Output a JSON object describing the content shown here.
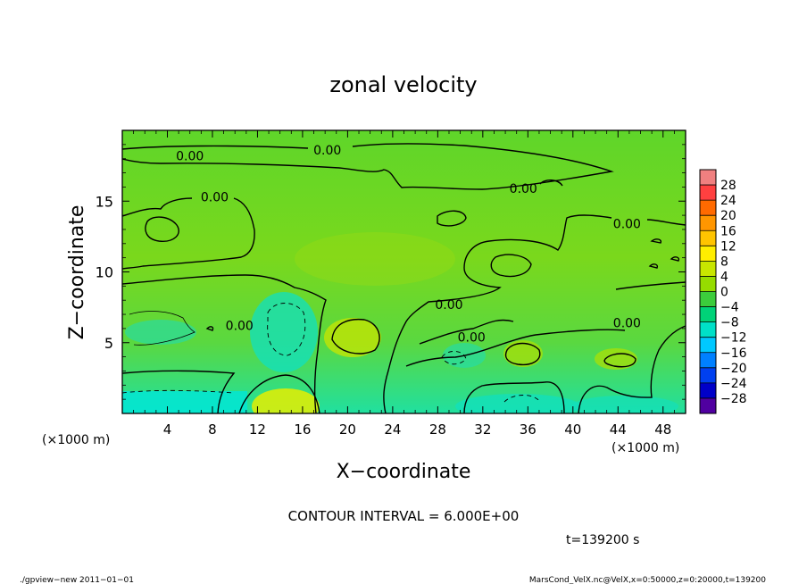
{
  "chart_data": {
    "type": "heatmap",
    "title": "zonal velocity",
    "xlabel": "X−coordinate",
    "ylabel": "Z−coordinate",
    "x_unit": "(×1000 m)",
    "z_unit": "(×1000 m)",
    "xlim": [
      0,
      50
    ],
    "ylim": [
      0,
      20
    ],
    "x_ticks": [
      4,
      8,
      12,
      16,
      20,
      24,
      28,
      32,
      36,
      40,
      44,
      48
    ],
    "y_ticks": [
      5,
      10,
      15
    ],
    "colorbar": {
      "labels": [
        "28",
        "24",
        "20",
        "16",
        "12",
        "8",
        "4",
        "0",
        "−4",
        "−8",
        "−12",
        "−16",
        "−20",
        "−24",
        "−28"
      ],
      "colors": [
        "#f08080",
        "#ff4040",
        "#ff6a00",
        "#ff9600",
        "#ffc400",
        "#ffee00",
        "#c8e600",
        "#96dc00",
        "#3ccc3c",
        "#00d278",
        "#00e0c8",
        "#00c8ff",
        "#0080ff",
        "#0040f0",
        "#0000c8",
        "#5000a0"
      ]
    },
    "contour_labels": [
      {
        "text": "0.00",
        "x": 6,
        "z": 18.2
      },
      {
        "text": "0.00",
        "x": 18.2,
        "z": 18.6
      },
      {
        "text": "0.00",
        "x": 8.2,
        "z": 15.3
      },
      {
        "text": "0.00",
        "x": 35.6,
        "z": 15.9
      },
      {
        "text": "0.00",
        "x": 44.8,
        "z": 13.4
      },
      {
        "text": "0.00",
        "x": 29,
        "z": 7.7
      },
      {
        "text": "0.00",
        "x": 31,
        "z": 5.4
      },
      {
        "text": "0.00",
        "x": 44.8,
        "z": 6.4
      },
      {
        "text": "0.00",
        "x": 10.4,
        "z": 6.2
      }
    ],
    "contour_interval_text": "CONTOUR INTERVAL = 6.000E+00",
    "time_text": "t=139200 s"
  },
  "footer": {
    "left": "./gpview−new   2011−01−01",
    "right": "MarsCond_VelX.nc@VelX,x=0:50000,z=0:20000,t=139200"
  }
}
